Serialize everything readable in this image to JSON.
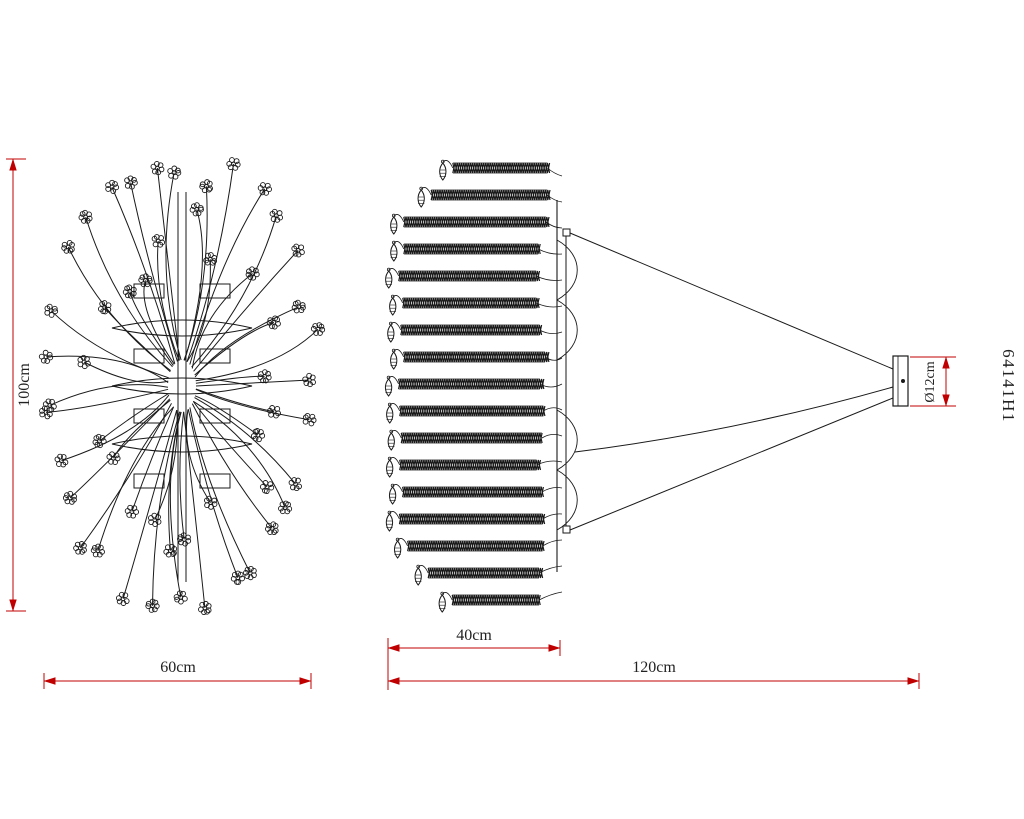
{
  "drawing": {
    "model": "64141H1",
    "dims": {
      "height": "100cm",
      "width": "60cm",
      "body_width": "40cm",
      "total_width": "120cm",
      "canopy_diameter": "Ø12cm"
    },
    "colors": {
      "dimension": "#c00000",
      "line": "#1a1a1a",
      "background": "#ffffff"
    }
  }
}
